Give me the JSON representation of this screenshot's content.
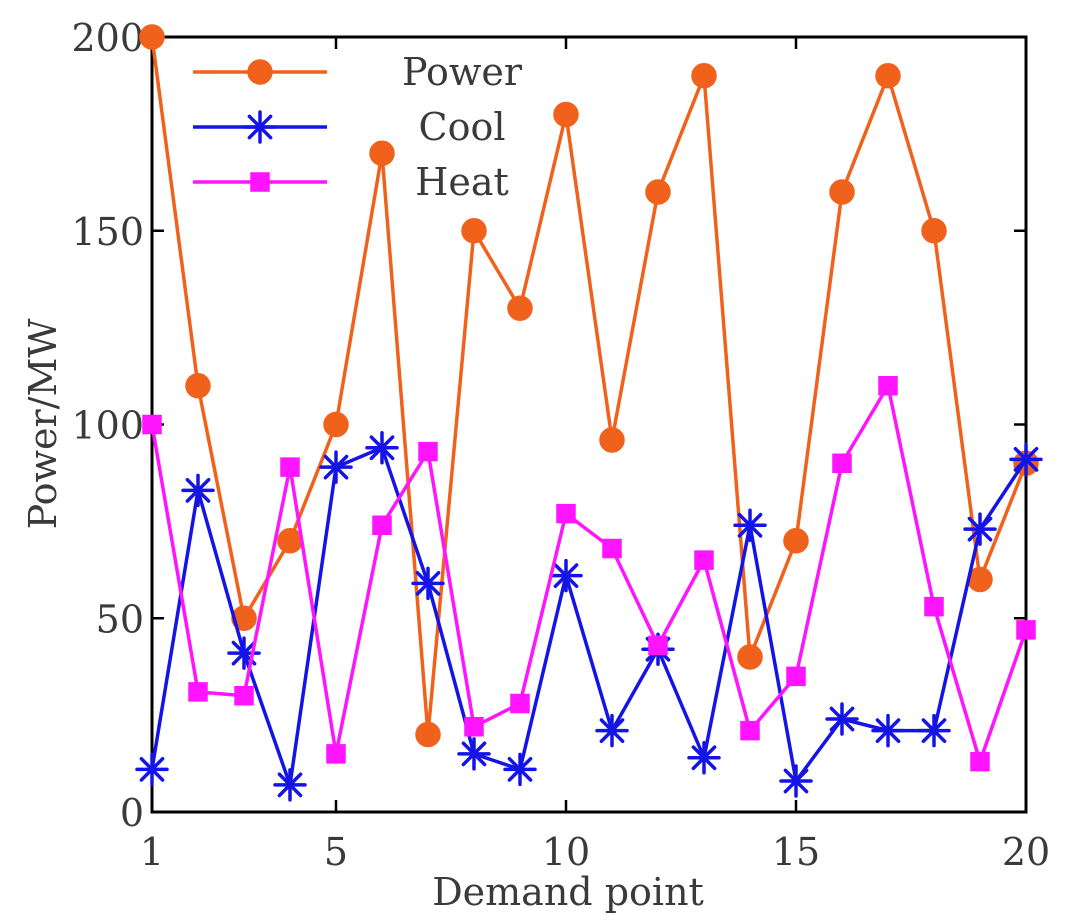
{
  "chart_data": {
    "type": "line",
    "title": "",
    "xlabel": "Demand point",
    "ylabel": "Power/MW",
    "xlim": [
      1,
      20
    ],
    "ylim": [
      0,
      200
    ],
    "xticks": [
      1,
      5,
      10,
      15,
      20
    ],
    "yticks": [
      0,
      50,
      100,
      150,
      200
    ],
    "x": [
      1,
      2,
      3,
      4,
      5,
      6,
      7,
      8,
      9,
      10,
      11,
      12,
      13,
      14,
      15,
      16,
      17,
      18,
      19,
      20
    ],
    "grid": false,
    "legend_position": "top-left",
    "series": [
      {
        "name": "Power",
        "color": "#f0621c",
        "marker": "circle",
        "values": [
          200,
          110,
          50,
          70,
          100,
          170,
          20,
          150,
          130,
          180,
          96,
          160,
          190,
          40,
          70,
          160,
          190,
          150,
          60,
          90
        ]
      },
      {
        "name": "Cool",
        "color": "#1414e6",
        "marker": "asterisk",
        "values": [
          11,
          83,
          41,
          7,
          89,
          94,
          59,
          15,
          11,
          61,
          21,
          42,
          14,
          74,
          8,
          24,
          21,
          21,
          73,
          91
        ]
      },
      {
        "name": "Heat",
        "color": "#ff14ff",
        "marker": "square",
        "values": [
          100,
          31,
          30,
          89,
          15,
          74,
          93,
          22,
          28,
          77,
          68,
          43,
          65,
          21,
          35,
          90,
          110,
          53,
          13,
          47
        ]
      }
    ]
  }
}
